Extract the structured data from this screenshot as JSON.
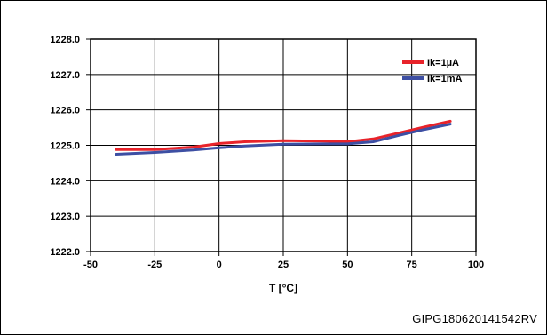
{
  "footer": {
    "code": "GIPG180620141542RV"
  },
  "chart_data": {
    "type": "line",
    "title": "",
    "xlabel": "T [°C]",
    "ylabel": "",
    "xlim": [
      -50,
      100
    ],
    "ylim": [
      1222.0,
      1228.0
    ],
    "x_ticks": [
      -50,
      -25,
      0,
      25,
      50,
      75,
      100
    ],
    "x_tick_labels": [
      "-50",
      "-25",
      "0",
      "25",
      "50",
      "75",
      "100"
    ],
    "y_ticks": [
      1222.0,
      1223.0,
      1224.0,
      1225.0,
      1226.0,
      1227.0,
      1228.0
    ],
    "y_tick_labels": [
      "1222.0",
      "1223.0",
      "1224.0",
      "1225.0",
      "1226.0",
      "1227.0",
      "1228.0"
    ],
    "grid": true,
    "legend_position": "top-right",
    "series": [
      {
        "name": "Ik=1µA",
        "color": "#e8232a",
        "x": [
          -40,
          -25,
          -10,
          0,
          10,
          25,
          40,
          50,
          60,
          70,
          80,
          90
        ],
        "y": [
          1224.88,
          1224.88,
          1224.95,
          1225.05,
          1225.1,
          1225.13,
          1225.12,
          1225.1,
          1225.18,
          1225.35,
          1225.52,
          1225.68
        ]
      },
      {
        "name": "Ik=1mA",
        "color": "#3d4fa3",
        "x": [
          -40,
          -25,
          -10,
          0,
          10,
          25,
          40,
          50,
          60,
          70,
          80,
          90
        ],
        "y": [
          1224.75,
          1224.8,
          1224.87,
          1224.93,
          1224.98,
          1225.03,
          1225.04,
          1225.04,
          1225.1,
          1225.28,
          1225.45,
          1225.6
        ]
      }
    ]
  }
}
